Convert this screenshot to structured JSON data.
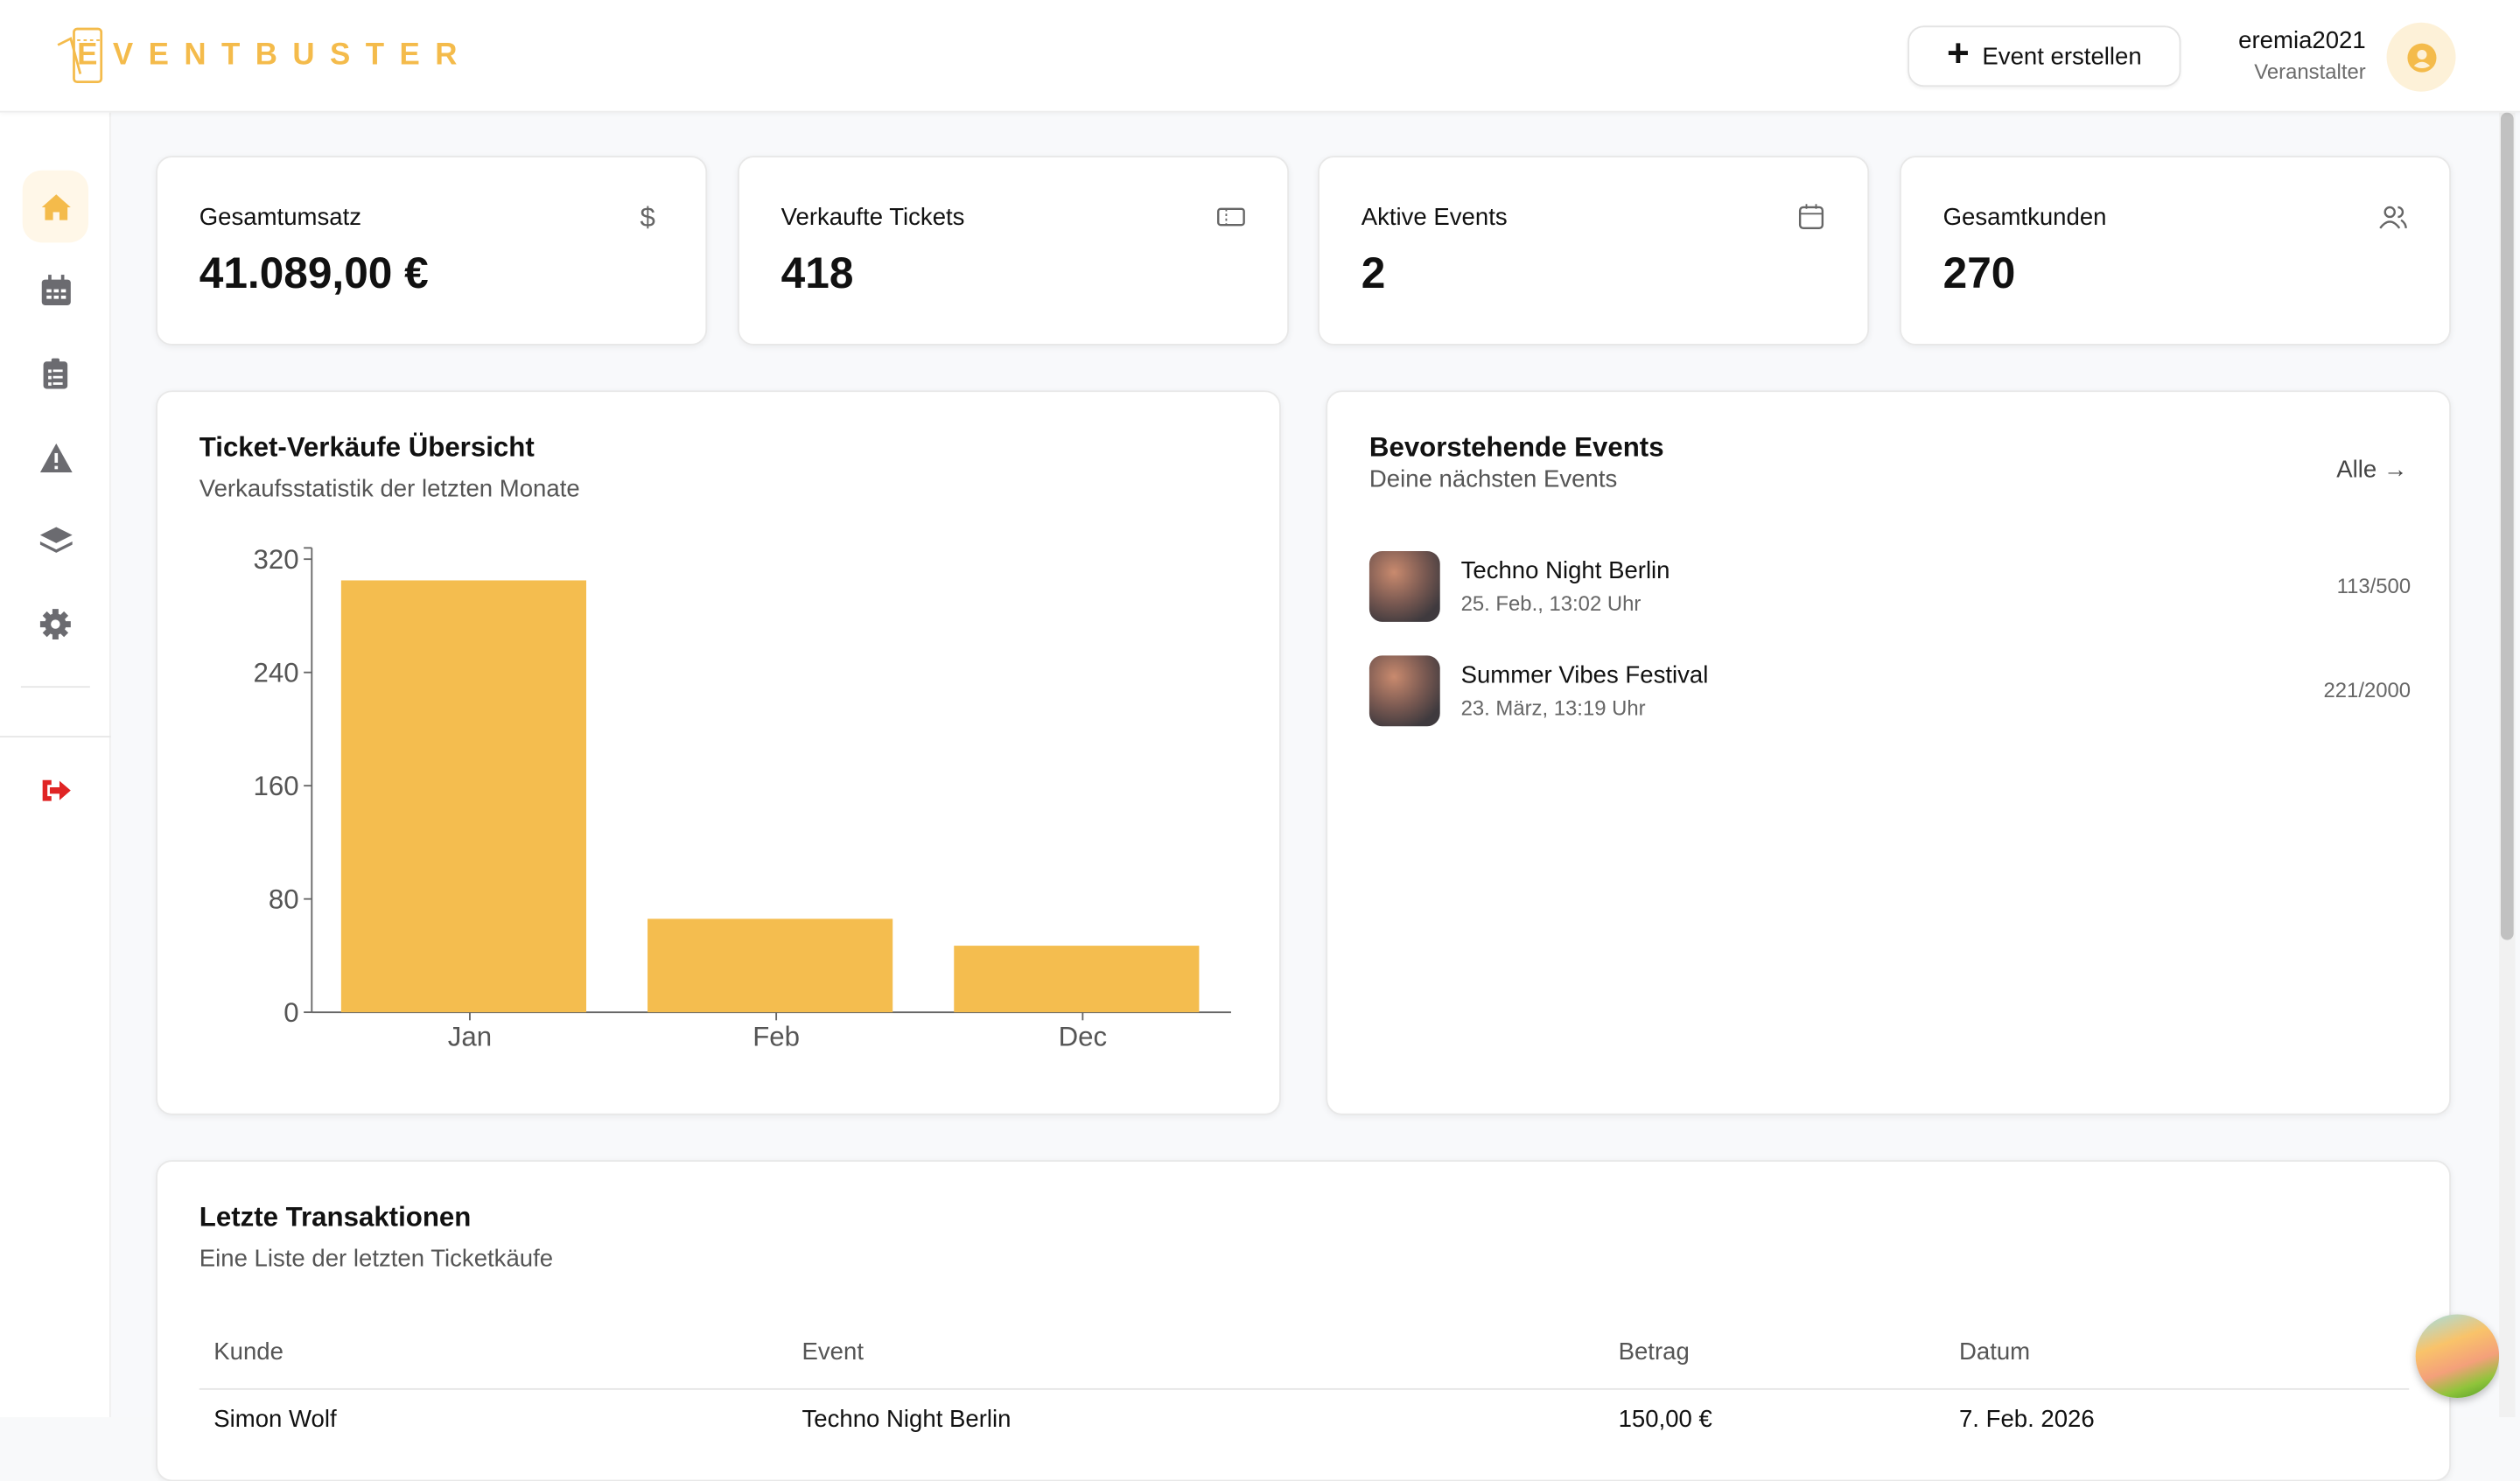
{
  "header": {
    "logo_text": "EVENTBUSTER",
    "create_button": "Event erstellen",
    "username": "eremia2021",
    "role": "Veranstalter"
  },
  "sidebar": {
    "items": [
      {
        "icon": "home-icon",
        "active": true
      },
      {
        "icon": "calendar-icon"
      },
      {
        "icon": "clipboard-list-icon"
      },
      {
        "icon": "warning-icon"
      },
      {
        "icon": "layers-icon"
      },
      {
        "icon": "gear-icon"
      }
    ],
    "logout_icon": "logout-icon"
  },
  "stats": [
    {
      "label": "Gesamtumsatz",
      "value": "41.089,00 €",
      "icon": "dollar-icon"
    },
    {
      "label": "Verkaufte Tickets",
      "value": "418",
      "icon": "ticket-icon"
    },
    {
      "label": "Aktive Events",
      "value": "2",
      "icon": "calendar-icon"
    },
    {
      "label": "Gesamtkunden",
      "value": "270",
      "icon": "users-icon"
    }
  ],
  "chart_card": {
    "title": "Ticket-Verkäufe Übersicht",
    "subtitle": "Verkaufsstatistik der letzten Monate"
  },
  "chart_data": {
    "type": "bar",
    "categories": [
      "Jan",
      "Feb",
      "Dec"
    ],
    "values": [
      305,
      66,
      47
    ],
    "yticks": [
      0,
      80,
      160,
      240,
      320
    ],
    "ylim": [
      0,
      320
    ],
    "grid": false,
    "color": "#f4bd4f"
  },
  "events": {
    "title": "Bevorstehende Events",
    "subtitle": "Deine nächsten Events",
    "all_link": "Alle",
    "items": [
      {
        "name": "Techno Night Berlin",
        "date": "25. Feb., 13:02 Uhr",
        "count": "113/500"
      },
      {
        "name": "Summer Vibes Festival",
        "date": "23. März, 13:19 Uhr",
        "count": "221/2000"
      }
    ]
  },
  "transactions": {
    "title": "Letzte Transaktionen",
    "subtitle": "Eine Liste der letzten Ticketkäufe",
    "columns": [
      "Kunde",
      "Event",
      "Betrag",
      "Datum"
    ],
    "rows": [
      [
        "Simon Wolf",
        "Techno Night Berlin",
        "150,00 €",
        "7. Feb. 2026"
      ]
    ]
  },
  "colors": {
    "accent": "#f4bb4b",
    "logout": "#e02424",
    "icon_gray": "#6b6b70"
  }
}
